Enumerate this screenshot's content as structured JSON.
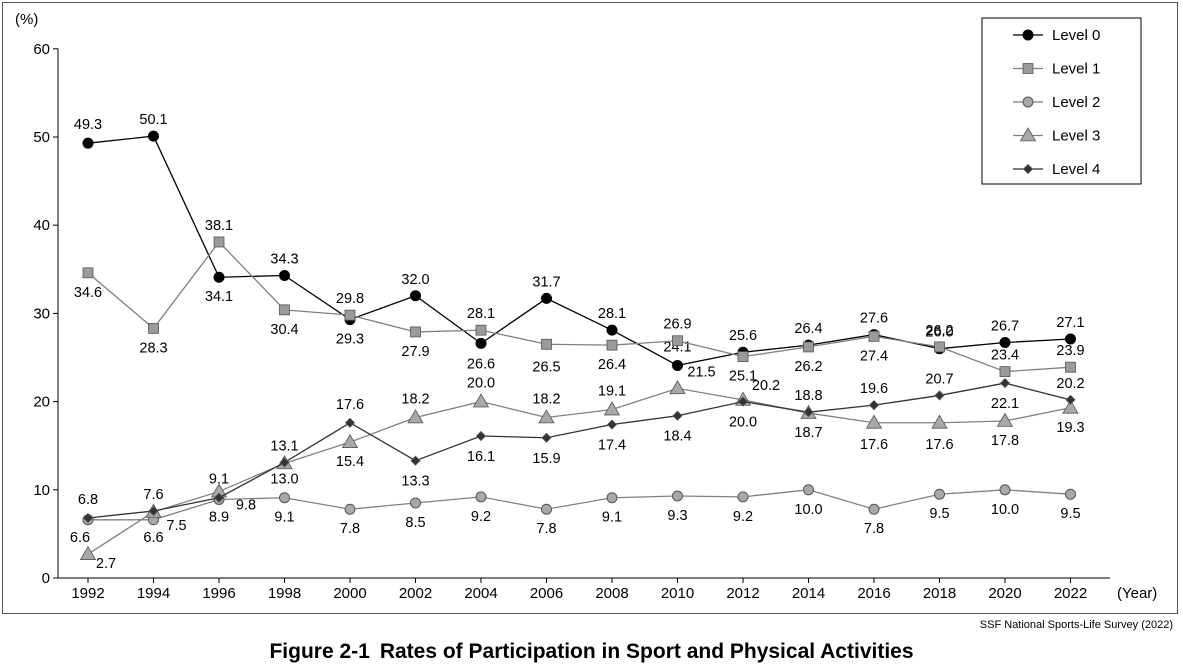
{
  "figure": {
    "label": "Figure 2-1",
    "title": "Rates of Participation in Sport and Physical Activities",
    "source": "SSF National Sports-Life Survey (2022)"
  },
  "chart_data": {
    "type": "line",
    "y_unit": "(%)",
    "x_unit": "(Year)",
    "ylim": [
      0,
      60
    ],
    "yticks": [
      0,
      10,
      20,
      30,
      40,
      50,
      60
    ],
    "categories": [
      "1992",
      "1994",
      "1996",
      "1998",
      "2000",
      "2002",
      "2004",
      "2006",
      "2008",
      "2010",
      "2012",
      "2014",
      "2016",
      "2018",
      "2020",
      "2022"
    ],
    "grid": false,
    "legend_position": "top-right",
    "series": [
      {
        "name": "Level 0",
        "marker": "circle",
        "color": "#000000",
        "marker_fill": "#000000",
        "values": [
          49.3,
          50.1,
          34.1,
          34.3,
          29.3,
          32.0,
          26.6,
          31.7,
          28.1,
          24.1,
          25.6,
          26.4,
          27.6,
          26.0,
          26.7,
          27.1
        ],
        "labels": [
          "49.3",
          "50.1",
          "34.1",
          "34.3",
          "29.3",
          "32.0",
          "26.6",
          "31.7",
          "28.1",
          "24.1",
          "25.6",
          "26.4",
          "27.6",
          "26.0",
          "26.7",
          "27.1"
        ]
      },
      {
        "name": "Level 1",
        "marker": "square",
        "color": "#808080",
        "marker_fill": "#9a9a9a",
        "values": [
          34.6,
          28.3,
          38.1,
          30.4,
          29.8,
          27.9,
          28.1,
          26.5,
          26.4,
          26.9,
          25.1,
          26.2,
          27.4,
          26.2,
          23.4,
          23.9
        ],
        "labels": [
          "34.6",
          "28.3",
          "38.1",
          "30.4",
          "29.8",
          "27.9",
          "28.1",
          "26.5",
          "26.4",
          "26.9",
          "25.1",
          "26.2",
          "27.4",
          "26.2",
          "23.4",
          "23.9"
        ]
      },
      {
        "name": "Level 2",
        "marker": "circle",
        "color": "#808080",
        "marker_fill": "#a8a8a8",
        "values": [
          6.6,
          6.6,
          8.9,
          9.1,
          7.8,
          8.5,
          9.2,
          7.8,
          9.1,
          9.3,
          9.2,
          10.0,
          7.8,
          9.5,
          10.0,
          9.5
        ],
        "labels": [
          "6.6",
          "6.6",
          "8.9",
          "9.1",
          "7.8",
          "8.5",
          "9.2",
          "7.8",
          "9.1",
          "9.3",
          "9.2",
          "10.0",
          "7.8",
          "9.5",
          "10.0",
          "9.5"
        ]
      },
      {
        "name": "Level 3",
        "marker": "triangle",
        "color": "#808080",
        "marker_fill": "#a8a8a8",
        "values": [
          2.7,
          7.5,
          9.8,
          13.0,
          15.4,
          18.2,
          20.0,
          18.2,
          19.1,
          21.5,
          20.2,
          18.7,
          17.6,
          17.6,
          17.8,
          19.3
        ],
        "labels": [
          "2.7",
          "7.5",
          "9.8",
          "13.0",
          "15.4",
          "18.2",
          "20.0",
          "18.2",
          "19.1",
          "21.5",
          "20.2",
          "18.7",
          "17.6",
          "17.6",
          "17.8",
          "19.3"
        ]
      },
      {
        "name": "Level 4",
        "marker": "diamond",
        "color": "#333333",
        "marker_fill": "#333333",
        "values": [
          6.8,
          7.6,
          9.1,
          13.1,
          17.6,
          13.3,
          16.1,
          15.9,
          17.4,
          18.4,
          20.0,
          18.8,
          19.6,
          20.7,
          22.1,
          20.2
        ],
        "labels": [
          "6.8",
          "7.6",
          "9.1",
          "13.1",
          "17.6",
          "13.3",
          "16.1",
          "15.9",
          "17.4",
          "18.4",
          "20.0",
          "18.8",
          "19.6",
          "20.7",
          "22.1",
          "20.2"
        ]
      }
    ]
  }
}
